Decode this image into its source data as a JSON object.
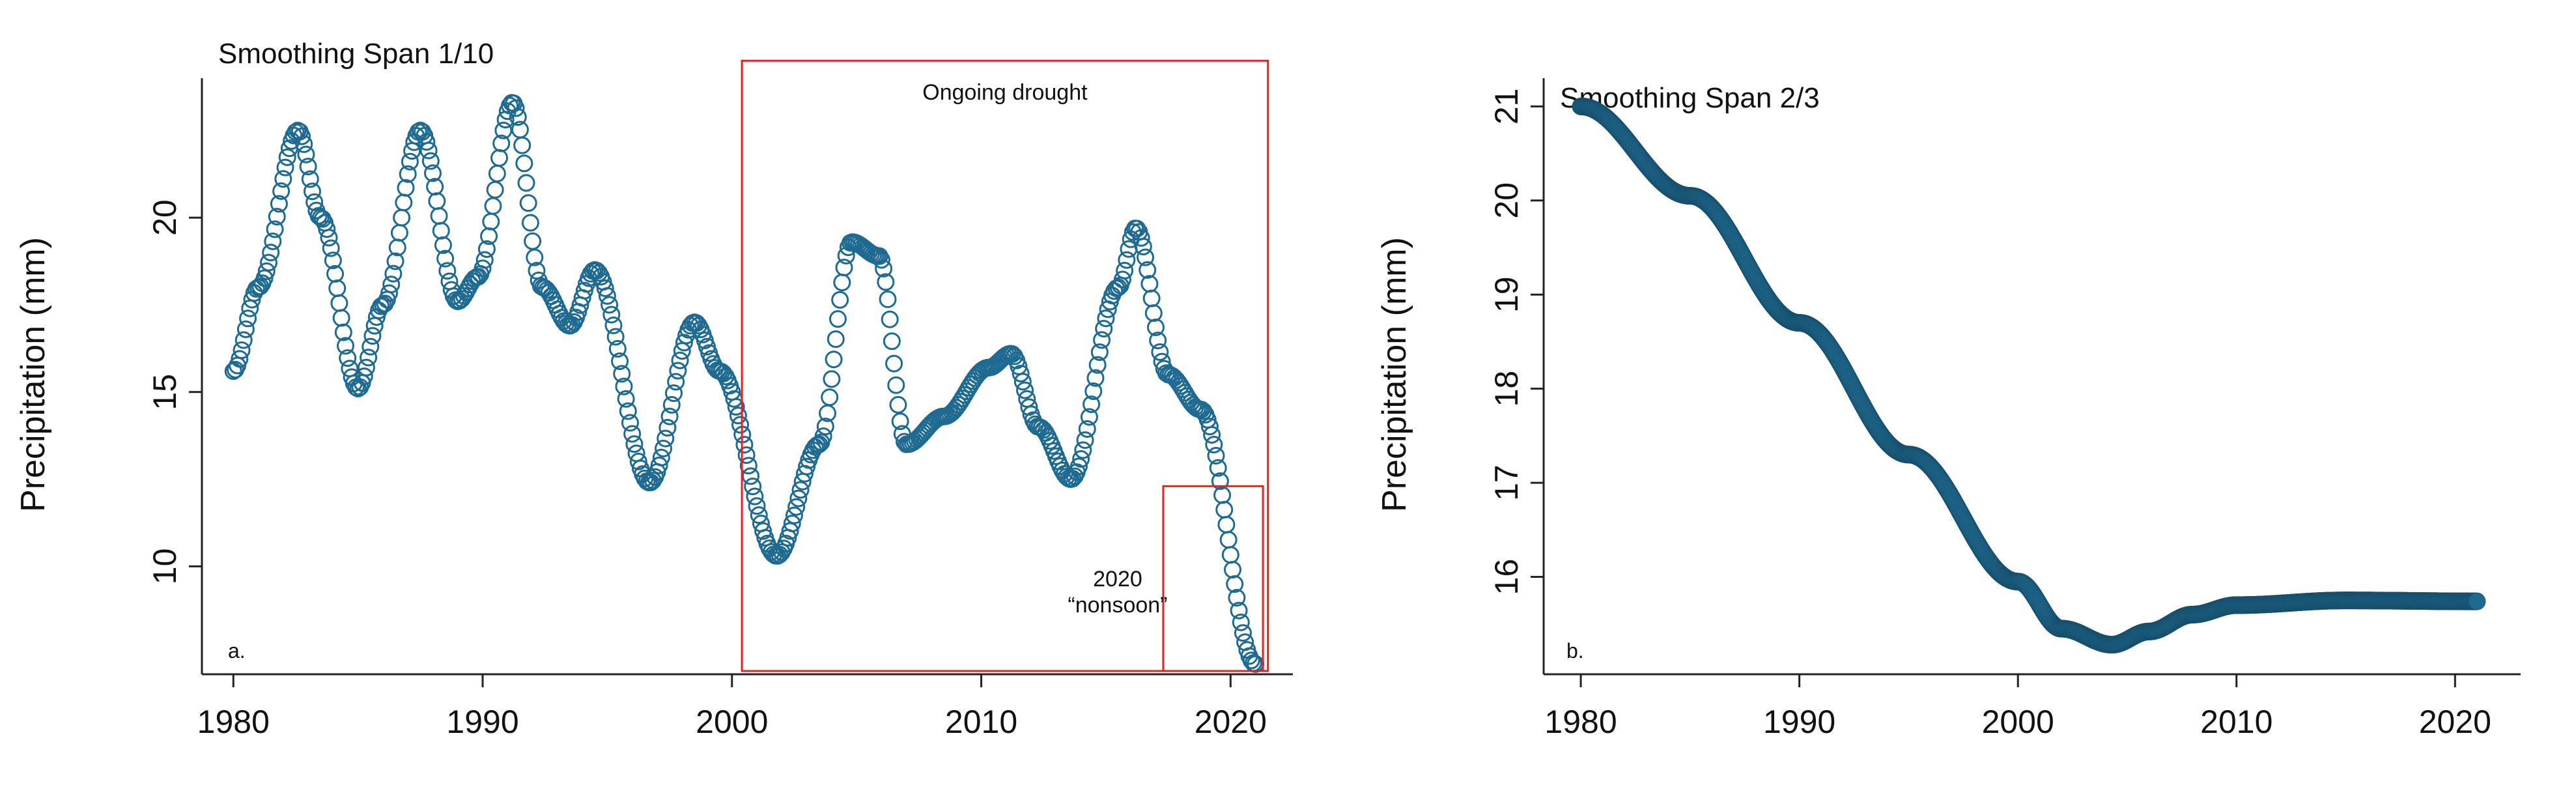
{
  "chart_data": [
    {
      "type": "scatter",
      "panel_tag": "a.",
      "title": "Smoothing Span 1/10",
      "xlabel": "",
      "ylabel": "Precipitation (mm)",
      "xlim": [
        1979,
        2022.5
      ],
      "ylim": [
        7.0,
        24.0
      ],
      "xticks": [
        1980,
        1990,
        2000,
        2010,
        2020
      ],
      "yticks": [
        10,
        15,
        20
      ],
      "marker": "open-circle",
      "color": "#1f6a91",
      "knots": [
        [
          1980.0,
          15.6
        ],
        [
          1981.0,
          18.0
        ],
        [
          1982.6,
          22.5
        ],
        [
          1983.5,
          20.0
        ],
        [
          1985.0,
          15.1
        ],
        [
          1986.0,
          17.5
        ],
        [
          1987.5,
          22.5
        ],
        [
          1989.0,
          17.6
        ],
        [
          1989.8,
          18.3
        ],
        [
          1991.2,
          23.3
        ],
        [
          1992.4,
          18.0
        ],
        [
          1993.5,
          16.9
        ],
        [
          1994.5,
          18.5
        ],
        [
          1996.7,
          12.4
        ],
        [
          1998.5,
          17.0
        ],
        [
          1999.5,
          15.6
        ],
        [
          2001.8,
          10.3
        ],
        [
          2003.5,
          13.5
        ],
        [
          2004.8,
          19.3
        ],
        [
          2005.9,
          18.9
        ],
        [
          2007.0,
          13.5
        ],
        [
          2008.5,
          14.3
        ],
        [
          2010.3,
          15.7
        ],
        [
          2011.2,
          16.1
        ],
        [
          2012.3,
          14.0
        ],
        [
          2013.6,
          12.5
        ],
        [
          2015.5,
          18.0
        ],
        [
          2016.2,
          19.7
        ],
        [
          2017.5,
          15.5
        ],
        [
          2018.8,
          14.5
        ],
        [
          2021.0,
          7.2
        ]
      ],
      "annotations": [
        {
          "label": "Ongoing drought",
          "x_range": [
            2000.4,
            2021.5
          ],
          "y_range": [
            6.5,
            24.5
          ]
        },
        {
          "label_line1": "2020",
          "label_line2": "“nonsoon”",
          "x_range": [
            2017.3,
            2021.3
          ],
          "y_range": [
            6.5,
            12.3
          ]
        }
      ]
    },
    {
      "type": "scatter",
      "panel_tag": "b.",
      "title": "Smoothing Span 2/3",
      "xlabel": "",
      "ylabel": "Precipitation (mm)",
      "xlim": [
        1978.3,
        2023.0
      ],
      "ylim": [
        15.0,
        21.3
      ],
      "xticks": [
        1980,
        1990,
        2000,
        2010,
        2020
      ],
      "yticks": [
        16,
        17,
        18,
        19,
        20,
        21
      ],
      "marker": "filled-circle",
      "color": "#1f6a91",
      "knots": [
        [
          1980.0,
          21.0
        ],
        [
          1985.0,
          20.05
        ],
        [
          1990.0,
          18.7
        ],
        [
          1995.0,
          17.3
        ],
        [
          2000.0,
          15.95
        ],
        [
          2002.0,
          15.45
        ],
        [
          2004.3,
          15.28
        ],
        [
          2006.0,
          15.42
        ],
        [
          2008.0,
          15.6
        ],
        [
          2010.0,
          15.7
        ],
        [
          2015.0,
          15.75
        ],
        [
          2021.0,
          15.74
        ]
      ]
    }
  ]
}
